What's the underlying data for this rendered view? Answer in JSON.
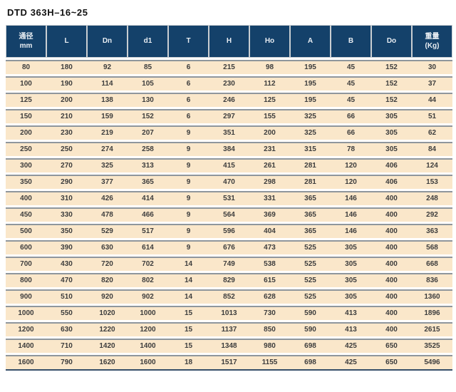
{
  "title": "DTD 363H–16~25",
  "colors": {
    "header_bg": "#14416a",
    "header_text": "#e9eef3",
    "row_bg": "#fae7ca",
    "cell_text": "#3d3d3d",
    "rule_gray": "#8f969c",
    "header_border": "#c9ced2",
    "bottom_rule": "#37506a",
    "page_bg": "#ffffff",
    "title_text": "#111111"
  },
  "table": {
    "columns": [
      {
        "label": "通径\nmm"
      },
      {
        "label": "L"
      },
      {
        "label": "Dn"
      },
      {
        "label": "d1"
      },
      {
        "label": "T"
      },
      {
        "label": "H"
      },
      {
        "label": "Ho"
      },
      {
        "label": "A"
      },
      {
        "label": "B"
      },
      {
        "label": "Do"
      },
      {
        "label": "重量\n(Kg)"
      }
    ],
    "rows": [
      [
        80,
        180,
        92,
        85,
        6,
        215,
        98,
        195,
        45,
        152,
        30
      ],
      [
        100,
        190,
        114,
        105,
        6,
        230,
        112,
        195,
        45,
        152,
        37
      ],
      [
        125,
        200,
        138,
        130,
        6,
        246,
        125,
        195,
        45,
        152,
        44
      ],
      [
        150,
        210,
        159,
        152,
        6,
        297,
        155,
        325,
        66,
        305,
        51
      ],
      [
        200,
        230,
        219,
        207,
        9,
        351,
        200,
        325,
        66,
        305,
        62
      ],
      [
        250,
        250,
        274,
        258,
        9,
        384,
        231,
        315,
        78,
        305,
        84
      ],
      [
        300,
        270,
        325,
        313,
        9,
        415,
        261,
        281,
        120,
        406,
        124
      ],
      [
        350,
        290,
        377,
        365,
        9,
        470,
        298,
        281,
        120,
        406,
        153
      ],
      [
        400,
        310,
        426,
        414,
        9,
        531,
        331,
        365,
        146,
        400,
        248
      ],
      [
        450,
        330,
        478,
        466,
        9,
        564,
        369,
        365,
        146,
        400,
        292
      ],
      [
        500,
        350,
        529,
        517,
        9,
        596,
        404,
        365,
        146,
        400,
        363
      ],
      [
        600,
        390,
        630,
        614,
        9,
        676,
        473,
        525,
        305,
        400,
        568
      ],
      [
        700,
        430,
        720,
        702,
        14,
        749,
        538,
        525,
        305,
        400,
        668
      ],
      [
        800,
        470,
        820,
        802,
        14,
        829,
        615,
        525,
        305,
        400,
        836
      ],
      [
        900,
        510,
        920,
        902,
        14,
        852,
        628,
        525,
        305,
        400,
        1360
      ],
      [
        1000,
        550,
        1020,
        1000,
        15,
        1013,
        730,
        590,
        413,
        400,
        1896
      ],
      [
        1200,
        630,
        1220,
        1200,
        15,
        1137,
        850,
        590,
        413,
        400,
        2615
      ],
      [
        1400,
        710,
        1420,
        1400,
        15,
        1348,
        980,
        698,
        425,
        650,
        3525
      ],
      [
        1600,
        790,
        1620,
        1600,
        18,
        1517,
        1155,
        698,
        425,
        650,
        5496
      ]
    ]
  }
}
